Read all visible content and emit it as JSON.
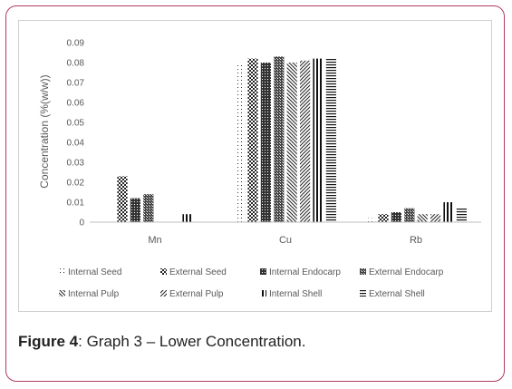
{
  "figure": {
    "label": "Figure 4",
    "text": ": Graph 3 – Lower Concentration."
  },
  "chart_data": {
    "type": "bar",
    "ylabel": "Concentration (%(w/w))",
    "xlabel": "",
    "ylim": [
      0,
      0.09
    ],
    "yticks": [
      "0",
      "0.01",
      "0.02",
      "0.03",
      "0.04",
      "0.05",
      "0.06",
      "0.07",
      "0.08",
      "0.09"
    ],
    "categories": [
      "Mn",
      "Cu",
      "Rb"
    ],
    "grid": false,
    "legend_position": "bottom",
    "series": [
      {
        "name": "Internal Seed",
        "pattern": "dots-sparse",
        "values": [
          0.0,
          0.08,
          0.002
        ]
      },
      {
        "name": "External Seed",
        "pattern": "checker",
        "values": [
          0.023,
          0.082,
          0.004
        ]
      },
      {
        "name": "Internal Endocarp",
        "pattern": "dense-grid",
        "values": [
          0.012,
          0.08,
          0.005
        ]
      },
      {
        "name": "External Endocarp",
        "pattern": "dense-dots",
        "values": [
          0.014,
          0.083,
          0.007
        ]
      },
      {
        "name": "Internal Pulp",
        "pattern": "diag-down",
        "values": [
          0.0,
          0.08,
          0.004
        ]
      },
      {
        "name": "External Pulp",
        "pattern": "diag-zigzag",
        "values": [
          0.0,
          0.081,
          0.004
        ]
      },
      {
        "name": "Internal Shell",
        "pattern": "vertical",
        "values": [
          0.004,
          0.082,
          0.01
        ]
      },
      {
        "name": "External Shell",
        "pattern": "horizontal",
        "values": [
          0.0,
          0.082,
          0.007
        ]
      }
    ]
  }
}
